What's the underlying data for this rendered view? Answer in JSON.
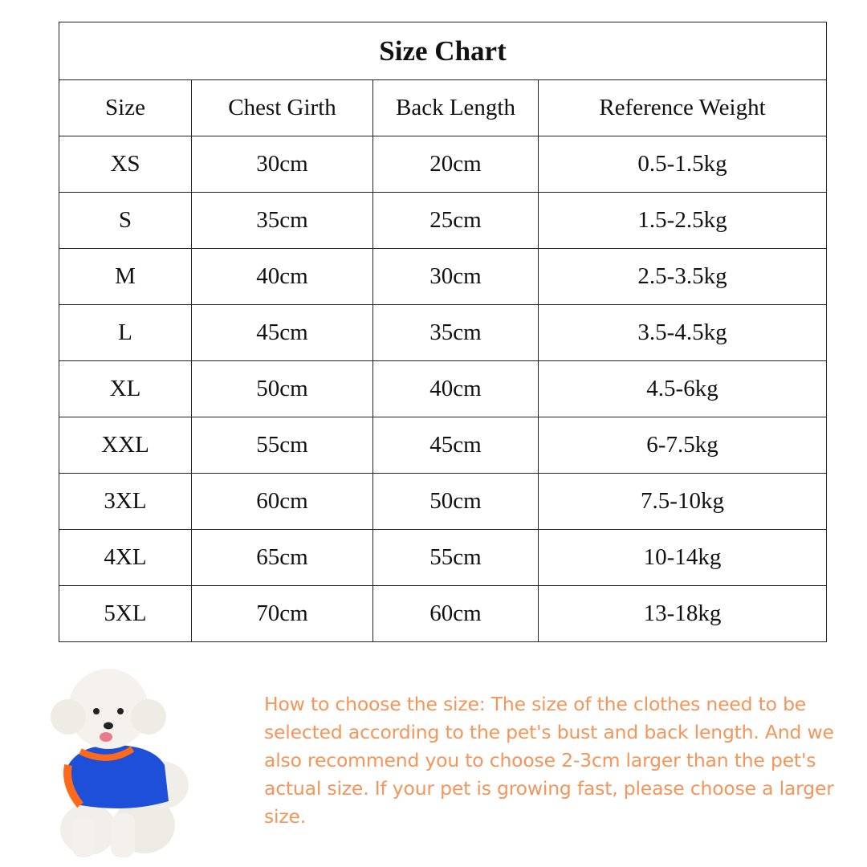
{
  "table": {
    "title": "Size Chart",
    "headers": [
      "Size",
      "Chest Girth",
      "Back Length",
      "Reference Weight"
    ],
    "rows": [
      [
        "XS",
        "30cm",
        "20cm",
        "0.5-1.5kg"
      ],
      [
        "S",
        "35cm",
        "25cm",
        "1.5-2.5kg"
      ],
      [
        "M",
        "40cm",
        "30cm",
        "2.5-3.5kg"
      ],
      [
        "L",
        "45cm",
        "35cm",
        "3.5-4.5kg"
      ],
      [
        "XL",
        "50cm",
        "40cm",
        "4.5-6kg"
      ],
      [
        "XXL",
        "55cm",
        "45cm",
        "6-7.5kg"
      ],
      [
        "3XL",
        "60cm",
        "50cm",
        "7.5-10kg"
      ],
      [
        "4XL",
        "65cm",
        "55cm",
        "10-14kg"
      ],
      [
        "5XL",
        "70cm",
        "60cm",
        "13-18kg"
      ]
    ]
  },
  "note": {
    "text": "How to choose the size: The size of the clothes need to be selected according to the pet's bust and back length. And we also recommend you to choose 2-3cm larger than the pet's actual size. If your pet is growing fast, please choose a larger size.",
    "color": "#F5955A"
  },
  "image": {
    "subject": "white poodle in blue and orange shirt",
    "shirt_color": "#1E4FD8",
    "trim_color": "#FF6A1A"
  }
}
